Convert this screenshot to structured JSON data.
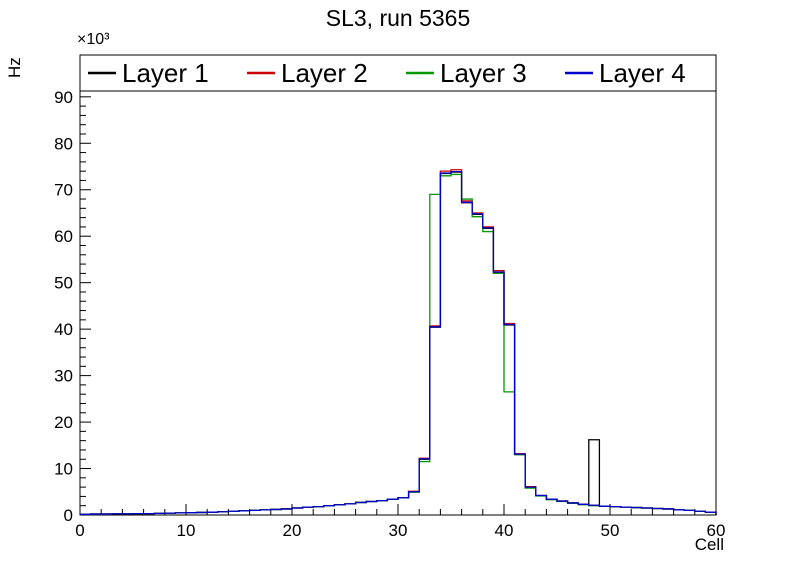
{
  "page": {
    "background": "#ffffff"
  },
  "chart_data": {
    "type": "line",
    "subtype": "step-histogram",
    "title": "SL3, run 5365",
    "xlabel": "Cell",
    "ylabel": "Hz",
    "y_multiplier_label": "×10³",
    "xlim": [
      0,
      60
    ],
    "ylim": [
      0,
      99000
    ],
    "y_axis_max_thousands": 99,
    "bin_width": 1,
    "grid": false,
    "legend_position": "top-inside-frame",
    "x_ticks": [
      0,
      10,
      20,
      30,
      40,
      50,
      60
    ],
    "y_ticks_thousands": [
      0,
      10,
      20,
      30,
      40,
      50,
      60,
      70,
      80,
      90
    ],
    "series": [
      {
        "name": "Layer 1",
        "color": "#000000",
        "values_thousands": [
          0.15,
          0.2,
          0.2,
          0.25,
          0.25,
          0.3,
          0.3,
          0.35,
          0.4,
          0.45,
          0.5,
          0.55,
          0.6,
          0.7,
          0.8,
          0.9,
          1.0,
          1.1,
          1.2,
          1.3,
          1.5,
          1.7,
          1.8,
          2.0,
          2.2,
          2.4,
          2.7,
          2.9,
          3.1,
          3.4,
          3.7,
          5.0,
          12.0,
          40.4,
          73.5,
          73.8,
          67.2,
          64.7,
          61.7,
          52.2,
          40.9,
          13.0,
          6.0,
          4.2,
          3.4,
          3.0,
          2.6,
          2.3,
          16.2,
          1.9,
          1.8,
          1.7,
          1.6,
          1.5,
          1.4,
          1.3,
          1.1,
          1.0,
          0.8,
          0.6
        ]
      },
      {
        "name": "Layer 2",
        "color": "#cc0000",
        "values_thousands": [
          0.15,
          0.2,
          0.2,
          0.25,
          0.25,
          0.3,
          0.3,
          0.35,
          0.4,
          0.45,
          0.5,
          0.55,
          0.6,
          0.7,
          0.8,
          0.9,
          1.0,
          1.1,
          1.2,
          1.3,
          1.5,
          1.7,
          1.8,
          2.0,
          2.2,
          2.4,
          2.7,
          2.9,
          3.1,
          3.4,
          3.7,
          5.1,
          12.2,
          40.7,
          74.0,
          74.3,
          67.6,
          65.0,
          62.0,
          52.6,
          41.2,
          13.2,
          6.1,
          4.2,
          3.4,
          3.0,
          2.6,
          2.3,
          2.1,
          1.9,
          1.8,
          1.7,
          1.6,
          1.5,
          1.4,
          1.3,
          1.1,
          1.0,
          0.8,
          0.6
        ]
      },
      {
        "name": "Layer 3",
        "color": "#009900",
        "values_thousands": [
          0.15,
          0.2,
          0.2,
          0.25,
          0.25,
          0.3,
          0.3,
          0.35,
          0.4,
          0.45,
          0.5,
          0.55,
          0.6,
          0.7,
          0.8,
          0.9,
          1.0,
          1.1,
          1.2,
          1.3,
          1.5,
          1.7,
          1.8,
          2.0,
          2.2,
          2.4,
          2.7,
          2.9,
          3.1,
          3.4,
          3.7,
          4.9,
          11.5,
          69.0,
          73.0,
          73.3,
          68.0,
          64.2,
          61.0,
          52.0,
          26.5,
          13.0,
          5.8,
          4.1,
          3.3,
          2.9,
          2.5,
          2.2,
          2.0,
          1.9,
          1.8,
          1.7,
          1.6,
          1.5,
          1.4,
          1.3,
          1.1,
          1.0,
          0.8,
          0.6
        ]
      },
      {
        "name": "Layer 4",
        "color": "#0000cc",
        "values_thousands": [
          0.15,
          0.2,
          0.2,
          0.25,
          0.25,
          0.3,
          0.3,
          0.35,
          0.4,
          0.45,
          0.5,
          0.55,
          0.6,
          0.7,
          0.8,
          0.9,
          1.0,
          1.1,
          1.2,
          1.3,
          1.5,
          1.7,
          1.8,
          2.0,
          2.2,
          2.4,
          2.7,
          2.9,
          3.1,
          3.4,
          3.7,
          5.0,
          12.1,
          40.5,
          73.6,
          73.9,
          67.3,
          64.8,
          61.8,
          52.3,
          41.0,
          13.1,
          6.0,
          4.2,
          3.4,
          3.0,
          2.6,
          2.3,
          2.1,
          1.9,
          1.8,
          1.7,
          1.6,
          1.5,
          1.4,
          1.3,
          1.1,
          1.0,
          0.8,
          0.6
        ]
      }
    ]
  }
}
